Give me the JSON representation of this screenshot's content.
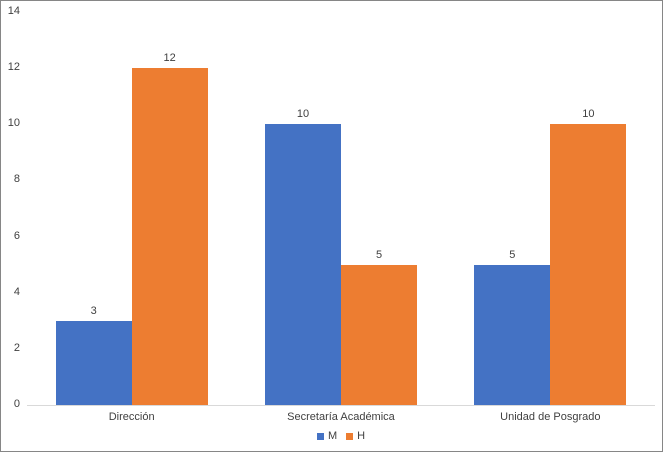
{
  "chart_data": {
    "type": "bar",
    "title": "",
    "xlabel": "",
    "ylabel": "",
    "categories": [
      "Dirección",
      "Secretaría Académica",
      "Unidad de Posgrado"
    ],
    "series": [
      {
        "name": "M",
        "color": "#4472C4",
        "values": [
          3,
          10,
          5
        ]
      },
      {
        "name": "H",
        "color": "#ED7D31",
        "values": [
          12,
          5,
          10
        ]
      }
    ],
    "ylim": [
      0,
      14
    ],
    "yticks": [
      0,
      2,
      4,
      6,
      8,
      10,
      12,
      14
    ],
    "grid": false,
    "data_labels": true,
    "legend_position": "bottom"
  },
  "colors": {
    "text": "#404040",
    "axis_line": "#D9D9D9",
    "background": "#FFFFFF",
    "border": "#868686"
  }
}
